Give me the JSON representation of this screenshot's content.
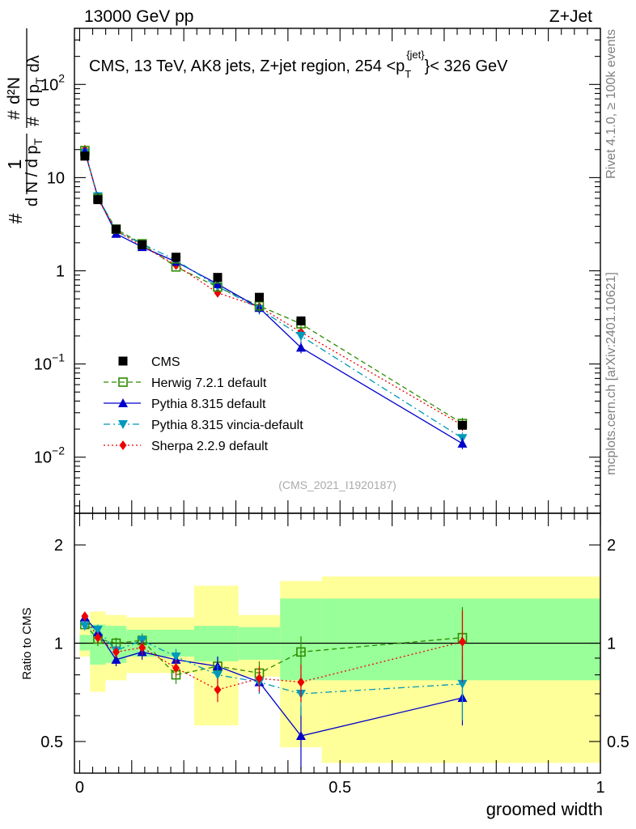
{
  "header": {
    "beam": "13000 GeV pp",
    "process": "Z+Jet"
  },
  "side_labels": {
    "rivet": "Rivet 4.1.0, ≥ 100k events",
    "mcplots": "mcplots.cern.ch [arXiv:2401.10621]"
  },
  "watermark": "(CMS_2021_I1920187)",
  "colors": {
    "cms": "#000000",
    "herwig": "#2e8b00",
    "pythia": "#0000cc",
    "vincia": "#0099bb",
    "sherpa": "#ee0000",
    "band_inner": "#99ff99",
    "band_outer": "#ffff99"
  },
  "chart_data": [
    {
      "type": "scatter",
      "title": "CMS, 13 TeV, AK8 jets, Z+jet region, 254 <p_T^{jet}< 326 GeV",
      "title_text": {
        "main": "CMS, 13 TeV, AK8 jets, Z+jet region, 254 <p",
        "sub": "T",
        "sup": "{jet}",
        "tail": "}< 326 GeV"
      },
      "ylabel": "1/dN/dp_T · d²N/dp_T dλ",
      "ylabel_parts": {
        "num1": "1",
        "den1": "d N / d p",
        "den1_sub": "T",
        "hash": "#",
        "num2": "d²N",
        "den2": "d p",
        "den2_sub": "T",
        "den2_tail": "dλ"
      },
      "yscale": "log",
      "ylim": [
        0.0025,
        400
      ],
      "xlim": [
        -0.01,
        1.0
      ],
      "yticks": [
        {
          "v": 0.01,
          "base": "10",
          "exp": "−2"
        },
        {
          "v": 0.1,
          "base": "10",
          "exp": "−1"
        },
        {
          "v": 1,
          "base": "1",
          "exp": ""
        },
        {
          "v": 10,
          "base": "10",
          "exp": ""
        },
        {
          "v": 100,
          "base": "10",
          "exp": "2"
        }
      ],
      "x": [
        0.01,
        0.035,
        0.07,
        0.12,
        0.185,
        0.265,
        0.345,
        0.425,
        0.735
      ],
      "series": [
        {
          "name": "CMS",
          "key": "cms",
          "marker": "square-filled",
          "line": "none",
          "values": [
            17.0,
            5.8,
            2.8,
            1.9,
            1.4,
            0.85,
            0.52,
            0.29,
            0.022
          ]
        },
        {
          "name": "Herwig 7.2.1 default",
          "key": "herwig",
          "marker": "square-open",
          "line": "dashed",
          "values": [
            19.5,
            6.0,
            2.8,
            1.95,
            1.1,
            0.67,
            0.42,
            0.27,
            0.023
          ]
        },
        {
          "name": "Pythia 8.315 default",
          "key": "pythia",
          "marker": "triangle-up",
          "line": "solid",
          "values": [
            19.0,
            6.2,
            2.5,
            1.8,
            1.25,
            0.72,
            0.4,
            0.15,
            0.014
          ]
        },
        {
          "name": "Pythia 8.315 vincia-default",
          "key": "vincia",
          "marker": "triangle-down",
          "line": "dashdot",
          "values": [
            18.5,
            6.3,
            2.65,
            1.95,
            1.3,
            0.68,
            0.39,
            0.2,
            0.016
          ]
        },
        {
          "name": "Sherpa 2.2.9 default",
          "key": "sherpa",
          "marker": "diamond",
          "line": "dotted",
          "values": [
            20.0,
            5.9,
            2.7,
            1.85,
            1.15,
            0.58,
            0.41,
            0.22,
            0.022
          ]
        }
      ],
      "legend": [
        "CMS",
        "Herwig 7.2.1 default",
        "Pythia 8.315 default",
        "Pythia 8.315 vincia-default",
        "Sherpa 2.2.9 default"
      ]
    },
    {
      "type": "line",
      "title": "",
      "xlabel": "groomed width",
      "ylabel": "Ratio to CMS",
      "yscale": "log",
      "ylim": [
        0.4,
        2.5
      ],
      "xlim": [
        -0.01,
        1.0
      ],
      "yticks": [
        {
          "v": 0.5,
          "label": "0.5"
        },
        {
          "v": 1,
          "label": "1"
        },
        {
          "v": 2,
          "label": "2"
        }
      ],
      "xticks": [
        {
          "v": 0,
          "label": "0"
        },
        {
          "v": 0.5,
          "label": "0.5"
        },
        {
          "v": 1,
          "label": "1"
        }
      ],
      "bins": [
        {
          "lo": 0.0,
          "hi": 0.02,
          "inner": [
            0.95,
            1.06
          ],
          "outer": [
            0.91,
            1.1
          ]
        },
        {
          "lo": 0.02,
          "hi": 0.05,
          "inner": [
            0.86,
            1.14
          ],
          "outer": [
            0.71,
            1.25
          ]
        },
        {
          "lo": 0.05,
          "hi": 0.09,
          "inner": [
            0.87,
            1.13
          ],
          "outer": [
            0.77,
            1.22
          ]
        },
        {
          "lo": 0.09,
          "hi": 0.15,
          "inner": [
            0.91,
            1.1
          ],
          "outer": [
            0.81,
            1.2
          ]
        },
        {
          "lo": 0.15,
          "hi": 0.22,
          "inner": [
            0.91,
            1.1
          ],
          "outer": [
            0.81,
            1.2
          ]
        },
        {
          "lo": 0.22,
          "hi": 0.305,
          "inner": [
            0.88,
            1.13
          ],
          "outer": [
            0.56,
            1.5
          ]
        },
        {
          "lo": 0.305,
          "hi": 0.385,
          "inner": [
            0.89,
            1.12
          ],
          "outer": [
            0.79,
            1.22
          ]
        },
        {
          "lo": 0.385,
          "hi": 0.465,
          "inner": [
            0.77,
            1.37
          ],
          "outer": [
            0.48,
            1.55
          ]
        },
        {
          "lo": 0.465,
          "hi": 1.0,
          "inner": [
            0.77,
            1.37
          ],
          "outer": [
            0.43,
            1.6
          ]
        }
      ],
      "x": [
        0.01,
        0.035,
        0.07,
        0.12,
        0.185,
        0.265,
        0.345,
        0.425,
        0.735
      ],
      "series": [
        {
          "name": "Herwig 7.2.1 default",
          "key": "herwig",
          "values": [
            1.14,
            1.03,
            1.0,
            1.02,
            0.8,
            0.85,
            0.81,
            0.94,
            1.04
          ],
          "err": [
            0.03,
            0.05,
            0.04,
            0.05,
            0.05,
            0.06,
            0.07,
            0.11,
            0.25
          ]
        },
        {
          "name": "Pythia 8.315 default",
          "key": "pythia",
          "values": [
            1.2,
            1.08,
            0.89,
            0.94,
            0.89,
            0.85,
            0.76,
            0.52,
            0.68
          ],
          "err": [
            0.03,
            0.04,
            0.04,
            0.05,
            0.05,
            0.06,
            0.06,
            0.12,
            0.12
          ]
        },
        {
          "name": "Pythia 8.315 vincia-default",
          "key": "vincia",
          "values": [
            1.13,
            1.1,
            0.95,
            1.02,
            0.91,
            0.8,
            0.76,
            0.7,
            0.75
          ],
          "err": [
            0.03,
            0.04,
            0.04,
            0.05,
            0.05,
            0.06,
            0.06,
            0.1,
            0.17
          ]
        },
        {
          "name": "Sherpa 2.2.9 default",
          "key": "sherpa",
          "values": [
            1.21,
            1.04,
            0.94,
            0.97,
            0.84,
            0.72,
            0.78,
            0.76,
            1.01
          ],
          "err": [
            0.03,
            0.04,
            0.04,
            0.05,
            0.05,
            0.06,
            0.07,
            0.1,
            0.25
          ]
        }
      ]
    }
  ]
}
